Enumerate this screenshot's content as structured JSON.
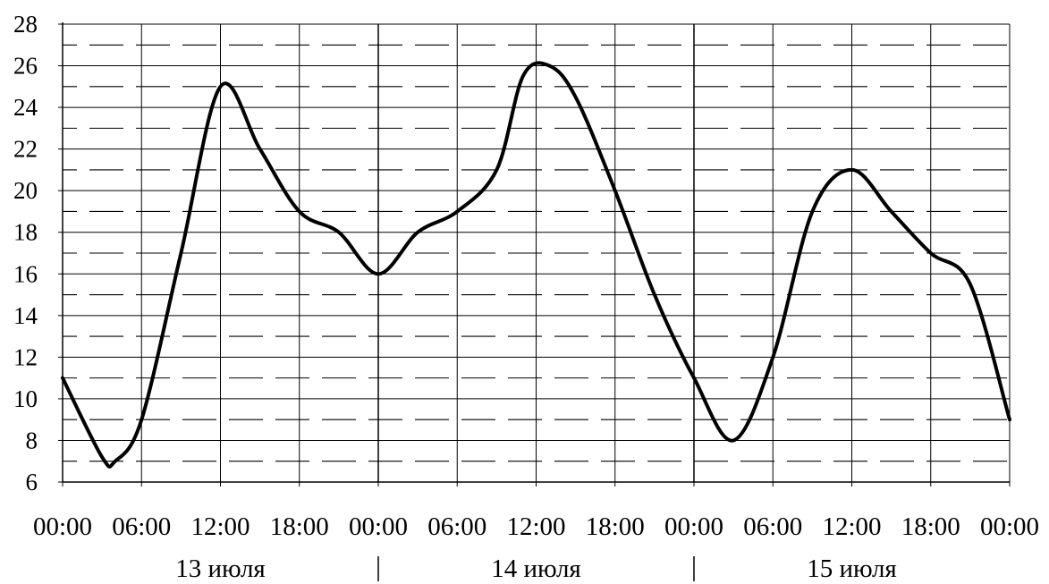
{
  "chart_data": {
    "type": "line",
    "title": "",
    "xlabel": "",
    "ylabel": "",
    "ylim": [
      6,
      28
    ],
    "y_ticks": [
      6,
      8,
      10,
      12,
      14,
      16,
      18,
      20,
      22,
      24,
      26,
      28
    ],
    "x_tick_labels": [
      "00:00",
      "06:00",
      "12:00",
      "18:00",
      "00:00",
      "06:00",
      "12:00",
      "18:00",
      "00:00",
      "06:00",
      "12:00",
      "18:00",
      "00:00"
    ],
    "day_labels": [
      "13 июля",
      "14 июля",
      "15 июля"
    ],
    "grid": true,
    "series": [
      {
        "hours": [
          0,
          3,
          4,
          6,
          9,
          12,
          15,
          18,
          21,
          24,
          27,
          30,
          33,
          35,
          37,
          39,
          42,
          45,
          48,
          51,
          54,
          57,
          60,
          63,
          66,
          69,
          72
        ],
        "values": [
          11,
          7.2,
          7,
          9,
          17,
          25,
          22,
          19,
          18,
          16,
          18,
          19,
          21,
          25.5,
          26,
          24.5,
          20,
          15,
          11,
          8,
          12,
          19,
          21,
          19,
          17,
          15.5,
          9
        ]
      }
    ]
  }
}
